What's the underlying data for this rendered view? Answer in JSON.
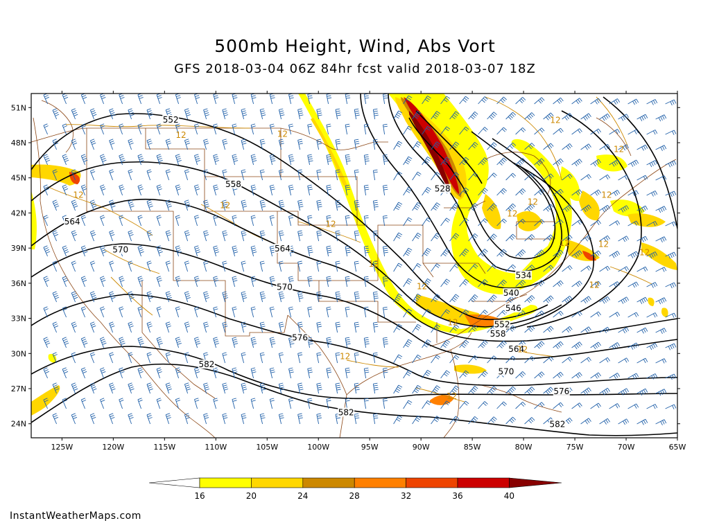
{
  "title": "500mb Height, Wind, Abs Vort",
  "subtitle": "GFS 2018-03-04 06Z 84hr fcst valid 2018-03-07 18Z",
  "credit": "InstantWeatherMaps.com",
  "lat_labels": [
    "51N",
    "48N",
    "45N",
    "42N",
    "39N",
    "36N",
    "33N",
    "30N",
    "27N",
    "24N"
  ],
  "lon_labels": [
    "125W",
    "120W",
    "115W",
    "110W",
    "105W",
    "100W",
    "95W",
    "90W",
    "85W",
    "80W",
    "75W",
    "70W",
    "65W"
  ],
  "legend": {
    "ticks": [
      "16",
      "20",
      "24",
      "28",
      "32",
      "36",
      "40"
    ],
    "colors": [
      "#ffffff",
      "#ffff00",
      "#ffd700",
      "#cc8800",
      "#ff8000",
      "#ee4400",
      "#cc0000",
      "#880000"
    ]
  },
  "height_labels": [
    {
      "text": "552",
      "lon": -114.4,
      "lat": 49.9
    },
    {
      "text": "558",
      "lon": -108.3,
      "lat": 44.4
    },
    {
      "text": "564",
      "lon": -124.0,
      "lat": 41.2
    },
    {
      "text": "564",
      "lon": -103.5,
      "lat": 38.9
    },
    {
      "text": "570",
      "lon": -119.3,
      "lat": 38.8
    },
    {
      "text": "570",
      "lon": -103.3,
      "lat": 35.6
    },
    {
      "text": "576",
      "lon": -101.8,
      "lat": 31.3
    },
    {
      "text": "582",
      "lon": -110.9,
      "lat": 29.0
    },
    {
      "text": "582",
      "lon": -97.3,
      "lat": 24.9
    },
    {
      "text": "528",
      "lon": -87.9,
      "lat": 44.0
    },
    {
      "text": "534",
      "lon": -80.0,
      "lat": 36.6
    },
    {
      "text": "540",
      "lon": -81.2,
      "lat": 35.1
    },
    {
      "text": "546",
      "lon": -81.0,
      "lat": 33.8
    },
    {
      "text": "552",
      "lon": -82.1,
      "lat": 32.4
    },
    {
      "text": "558",
      "lon": -82.5,
      "lat": 31.6
    },
    {
      "text": "564",
      "lon": -80.7,
      "lat": 30.3
    },
    {
      "text": "570",
      "lon": -81.7,
      "lat": 28.4
    },
    {
      "text": "576",
      "lon": -76.3,
      "lat": 26.7
    },
    {
      "text": "582",
      "lon": -76.7,
      "lat": 23.9
    }
  ],
  "vort_labels": [
    {
      "text": "12",
      "lon": -113.4,
      "lat": 48.4
    },
    {
      "text": "12",
      "lon": -103.5,
      "lat": 48.5
    },
    {
      "text": "12",
      "lon": -123.4,
      "lat": 43.3
    },
    {
      "text": "12",
      "lon": -109.1,
      "lat": 42.4
    },
    {
      "text": "12",
      "lon": -98.8,
      "lat": 40.8
    },
    {
      "text": "12",
      "lon": -94.6,
      "lat": 37.4
    },
    {
      "text": "12",
      "lon": -89.9,
      "lat": 35.5
    },
    {
      "text": "12",
      "lon": -86.9,
      "lat": 32.4
    },
    {
      "text": "12",
      "lon": -97.4,
      "lat": 29.5
    },
    {
      "text": "12",
      "lon": -80.1,
      "lat": 30.1
    },
    {
      "text": "12",
      "lon": -87.0,
      "lat": 26.1
    },
    {
      "text": "12",
      "lon": -76.9,
      "lat": 49.7
    },
    {
      "text": "12",
      "lon": -70.7,
      "lat": 47.2
    },
    {
      "text": "12",
      "lon": -71.9,
      "lat": 43.3
    },
    {
      "text": "12",
      "lon": -79.1,
      "lat": 42.7
    },
    {
      "text": "12",
      "lon": -81.1,
      "lat": 41.7
    },
    {
      "text": "12",
      "lon": -76.0,
      "lat": 39.2
    },
    {
      "text": "12",
      "lon": -72.2,
      "lat": 39.1
    },
    {
      "text": "12",
      "lon": -68.2,
      "lat": 38.4
    },
    {
      "text": "12",
      "lon": -73.1,
      "lat": 35.6
    }
  ]
}
